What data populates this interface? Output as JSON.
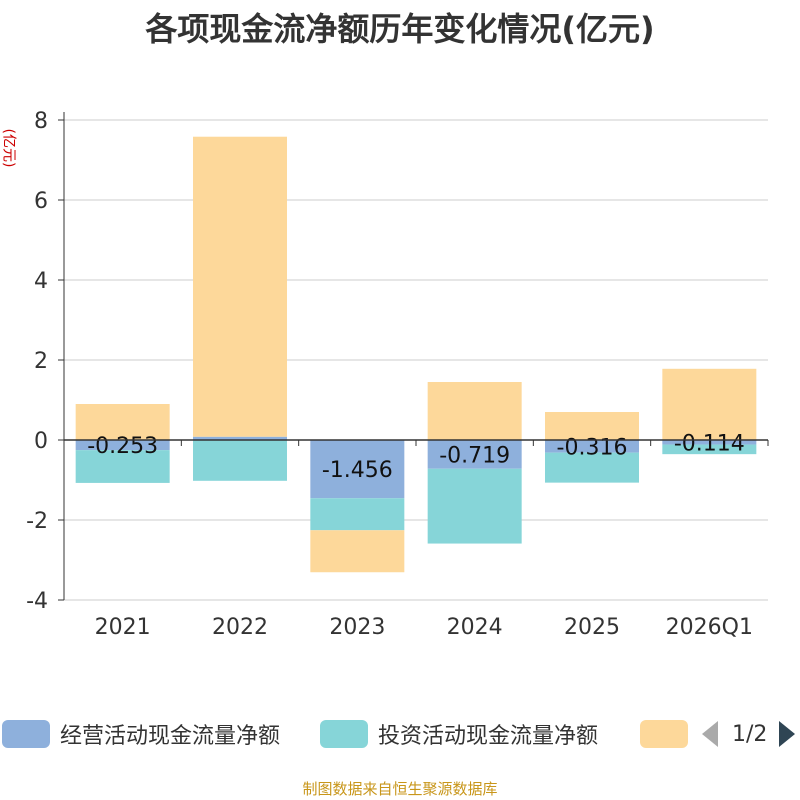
{
  "title": "各项现金流净额历年变化情况(亿元)",
  "unit_label": "(亿元)",
  "source": "制图数据来自恒生聚源数据库",
  "pager": {
    "current": "1/2"
  },
  "colors": {
    "operating": "#8eb0dc",
    "investing": "#86d5d8",
    "financing": "#fdd89a",
    "axis": "#333333",
    "grid": "#cccccc"
  },
  "chart_data": {
    "type": "bar",
    "stacked": true,
    "title": "各项现金流净额历年变化情况(亿元)",
    "ylabel": "(亿元)",
    "ylim": [
      -4,
      8
    ],
    "yticks": [
      -4,
      -2,
      0,
      2,
      4,
      6,
      8
    ],
    "categories": [
      "2021",
      "2022",
      "2023",
      "2024",
      "2025",
      "2026Q1"
    ],
    "series": [
      {
        "name": "经营活动现金流量净额",
        "values": [
          -0.253,
          0.082,
          -1.456,
          -0.719,
          -0.316,
          -0.114
        ],
        "labels": [
          "-0.253",
          "",
          "-1.456",
          "-0.719",
          "-0.316",
          "-0.114"
        ]
      },
      {
        "name": "投资活动现金流量净额",
        "values": [
          -0.82,
          -1.02,
          -0.8,
          -1.87,
          -0.75,
          -0.24
        ]
      },
      {
        "name": "",
        "values": [
          0.9,
          7.5,
          -1.05,
          1.45,
          0.7,
          1.78
        ]
      }
    ],
    "legend": [
      "经营活动现金流量净额",
      "投资活动现金流量净额",
      ""
    ]
  }
}
